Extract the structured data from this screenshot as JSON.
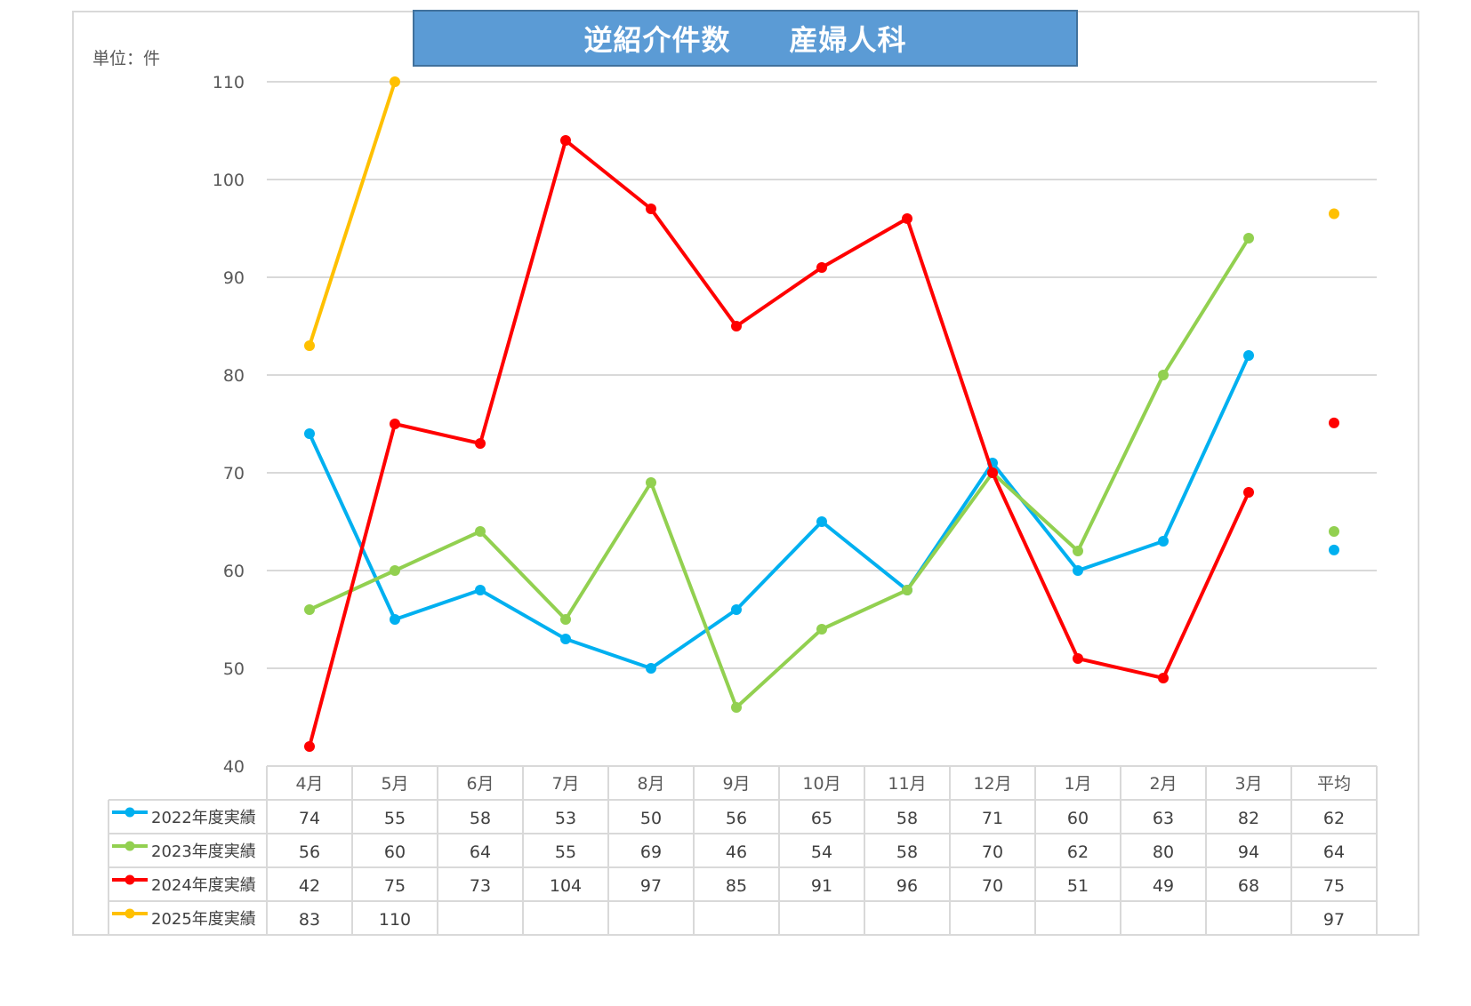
{
  "chart_data": {
    "type": "line",
    "title": "逆紹介件数　　産婦人科",
    "unit_label": "単位：件",
    "categories": [
      "4月",
      "5月",
      "6月",
      "7月",
      "8月",
      "9月",
      "10月",
      "11月",
      "12月",
      "1月",
      "2月",
      "3月"
    ],
    "avg_label": "平均",
    "ylim": [
      40,
      110
    ],
    "y_ticks": [
      40,
      50,
      60,
      70,
      80,
      90,
      100,
      110
    ],
    "grid": true,
    "legend": "data-table",
    "series": [
      {
        "name": "2022年度実績",
        "color": "#00b0f0",
        "values": [
          74,
          55,
          58,
          53,
          50,
          56,
          65,
          58,
          71,
          60,
          63,
          82
        ],
        "average": 62,
        "average_plot": 62.1
      },
      {
        "name": "2023年度実績",
        "color": "#92d050",
        "values": [
          56,
          60,
          64,
          55,
          69,
          46,
          54,
          58,
          70,
          62,
          80,
          94
        ],
        "average": 64,
        "average_plot": 64.0
      },
      {
        "name": "2024年度実績",
        "color": "#ff0000",
        "values": [
          42,
          75,
          73,
          104,
          97,
          85,
          91,
          96,
          70,
          51,
          49,
          68
        ],
        "average": 75,
        "average_plot": 75.1
      },
      {
        "name": "2025年度実績",
        "color": "#ffc000",
        "values": [
          83,
          110,
          null,
          null,
          null,
          null,
          null,
          null,
          null,
          null,
          null,
          null
        ],
        "average": 97,
        "average_plot": 96.5
      }
    ]
  }
}
